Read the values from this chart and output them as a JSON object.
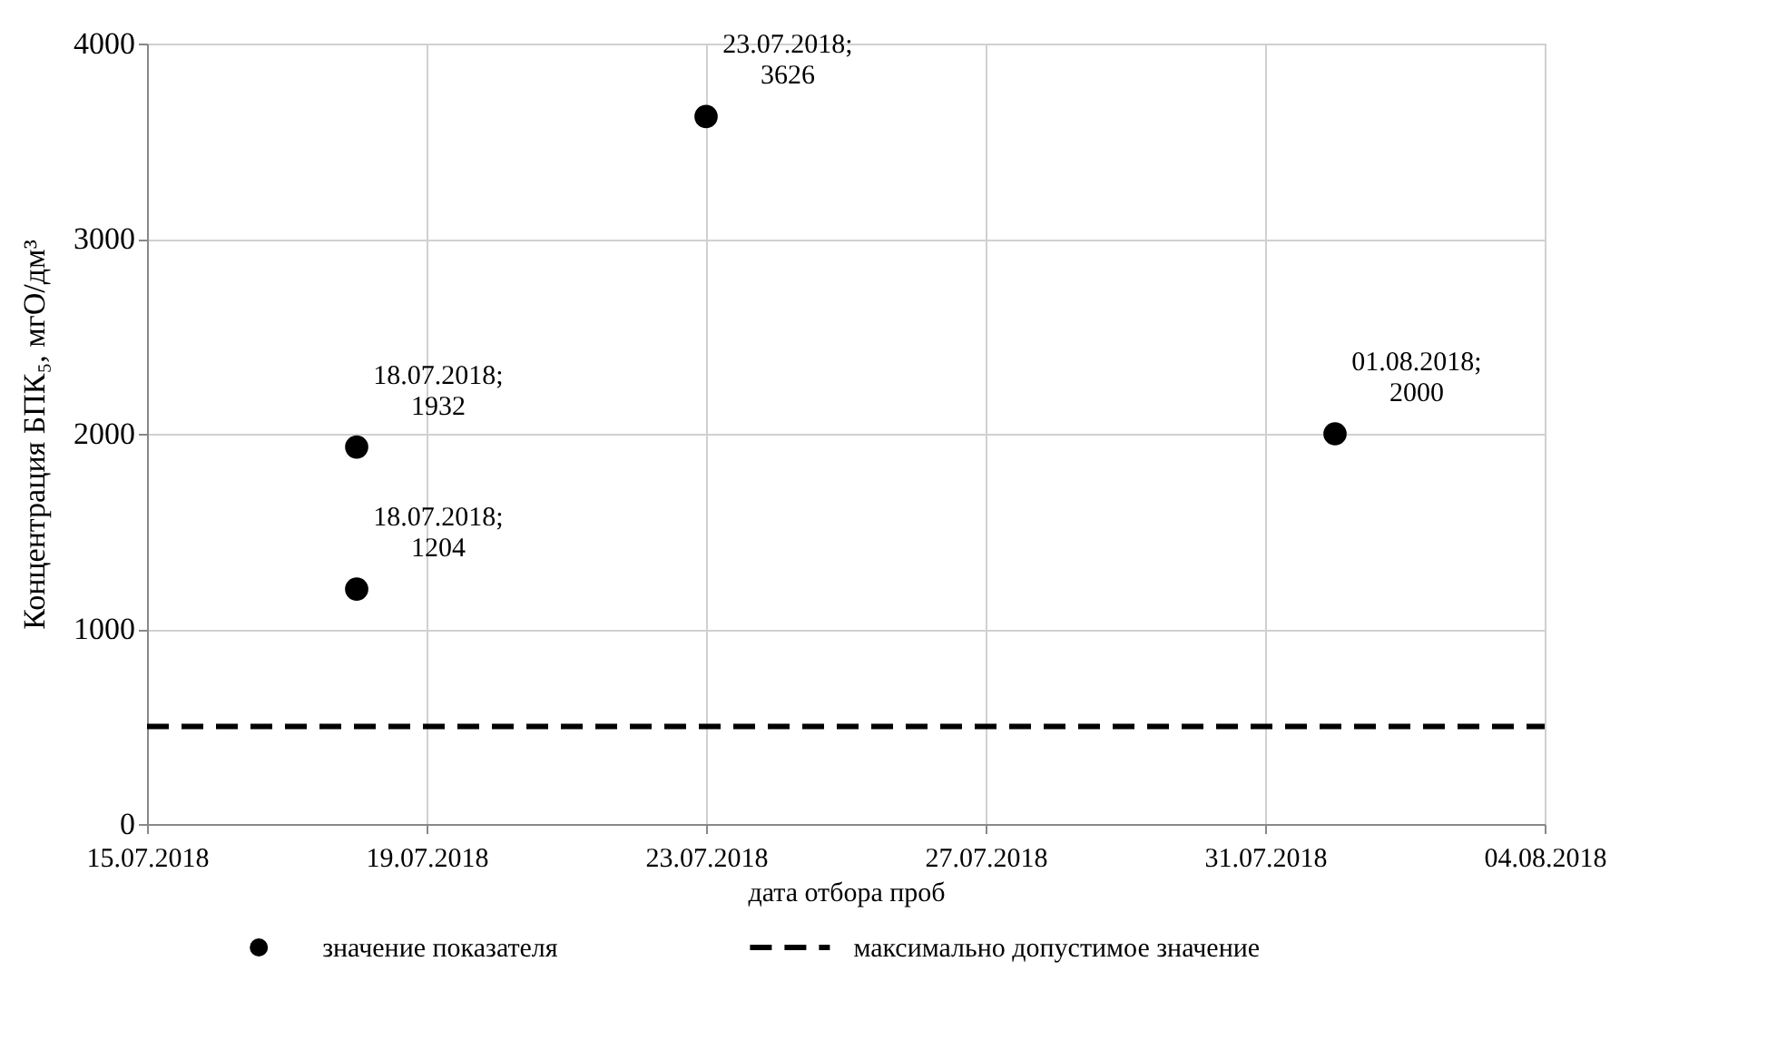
{
  "chart_data": {
    "type": "scatter",
    "xlabel": "дата отбора проб",
    "ylabel": "Концентрация БПК₅, мгО/дм³",
    "x": [
      "2018-07-18",
      "2018-07-18",
      "2018-07-23",
      "2018-08-01"
    ],
    "series": [
      {
        "name": "значение показателя",
        "color": "#000000",
        "marker": "circle",
        "values": [
          1932,
          1204,
          3626,
          2000
        ],
        "value_labels": [
          "18.07.2018;\n1932",
          "18.07.2018;\n1204",
          "23.07.2018;\n3626",
          "01.08.2018;\n2000"
        ]
      },
      {
        "name": "максимально допустимое значение",
        "type": "line",
        "color": "#000000",
        "line_style": "dashed",
        "x": [
          "2018-07-15",
          "2018-08-04"
        ],
        "values": [
          500,
          500
        ]
      }
    ],
    "xlim": [
      "2018-07-15",
      "2018-08-04"
    ],
    "xticks": [
      {
        "value": "2018-07-15",
        "label": "15.07.2018"
      },
      {
        "value": "2018-07-19",
        "label": "19.07.2018"
      },
      {
        "value": "2018-07-23",
        "label": "23.07.2018"
      },
      {
        "value": "2018-07-27",
        "label": "27.07.2018"
      },
      {
        "value": "2018-07-31",
        "label": "31.07.2018"
      },
      {
        "value": "2018-08-04",
        "label": "04.08.2018"
      }
    ],
    "ylim": [
      0,
      4000
    ],
    "yticks": [
      0,
      1000,
      2000,
      3000,
      4000
    ],
    "grid": true,
    "legend": "bottom"
  }
}
